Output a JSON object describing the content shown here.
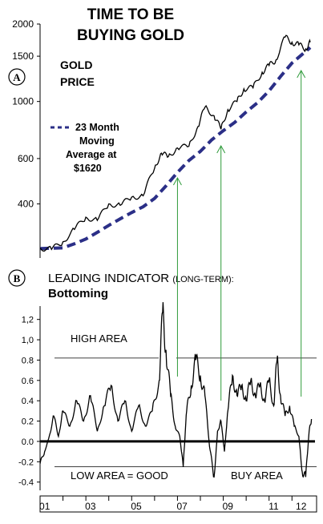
{
  "chart_data": [
    {
      "panel_label": "A",
      "type": "line",
      "title": "TIME TO BE",
      "subtitle": "BUYING GOLD",
      "label": "GOLD PRICE",
      "label_lines": [
        "GOLD",
        "PRICE"
      ],
      "y_scale": "log",
      "ylim": [
        250,
        2000
      ],
      "y_ticks": [
        400,
        600,
        1000,
        1500,
        2000
      ],
      "y_tick_labels": [
        "400",
        "600",
        "1000",
        "1500",
        "2000"
      ],
      "x_range": [
        2001.0,
        2012.9
      ],
      "legend": {
        "lines": [
          "23 Month",
          "Moving",
          "Average at",
          "$1620"
        ],
        "marker": "- - -",
        "position": "left-middle"
      },
      "series": [
        {
          "style": "solid",
          "x": [
            2001.0,
            2001.5,
            2002.0,
            2002.5,
            2003.0,
            2003.5,
            2004.0,
            2004.5,
            2005.0,
            2005.5,
            2006.0,
            2006.3,
            2006.6,
            2007.0,
            2007.5,
            2007.9,
            2008.2,
            2008.6,
            2008.9,
            2009.2,
            2009.6,
            2009.9,
            2010.3,
            2010.7,
            2011.0,
            2011.3,
            2011.7,
            2012.0,
            2012.3,
            2012.6,
            2012.8
          ],
          "values": [
            270,
            266,
            285,
            318,
            355,
            345,
            400,
            395,
            425,
            430,
            550,
            630,
            610,
            660,
            670,
            800,
            950,
            880,
            780,
            930,
            1000,
            1120,
            1130,
            1300,
            1380,
            1450,
            1780,
            1700,
            1660,
            1600,
            1700
          ]
        },
        {
          "style": "dashed",
          "x": [
            2001.0,
            2002.0,
            2002.5,
            2003.0,
            2003.5,
            2004.0,
            2004.5,
            2005.0,
            2005.5,
            2006.0,
            2006.5,
            2007.0,
            2007.5,
            2008.0,
            2008.5,
            2009.0,
            2009.5,
            2010.0,
            2010.5,
            2011.0,
            2011.5,
            2012.0,
            2012.5,
            2012.8
          ],
          "values": [
            268,
            270,
            280,
            292,
            310,
            330,
            350,
            370,
            390,
            420,
            470,
            530,
            590,
            640,
            710,
            770,
            830,
            910,
            990,
            1100,
            1250,
            1410,
            1540,
            1620
          ]
        }
      ]
    },
    {
      "panel_label": "B",
      "type": "line",
      "title": "LEADING INDICATOR",
      "title_suffix": "(LONG-TERM):",
      "subtitle": "Bottoming",
      "ylim": [
        -0.45,
        1.3
      ],
      "y_ticks": [
        -0.4,
        -0.2,
        0.0,
        0.2,
        0.4,
        0.6,
        0.8,
        1.0,
        1.2
      ],
      "y_tick_labels": [
        "-0.4",
        "-0.2",
        "0.0",
        "0.2",
        "0.4",
        "0.6",
        "0.8",
        "1,0",
        "1,2"
      ],
      "x_range": [
        2001.0,
        2012.9
      ],
      "x_tick_labels": [
        "01",
        "03",
        "05",
        "07",
        "09",
        "11",
        "12"
      ],
      "x_tick_positions": [
        2001.2,
        2003.2,
        2005.2,
        2007.2,
        2009.2,
        2011.2,
        2012.4
      ],
      "zones": {
        "high": "HIGH  AREA",
        "low_left": "LOW   AREA =  GOOD",
        "low_right": "BUY AREA",
        "high_level": 0.82,
        "low_level": -0.25
      },
      "series": [
        {
          "style": "solid",
          "x": [
            2001.0,
            2001.2,
            2001.4,
            2001.6,
            2001.8,
            2002.0,
            2002.3,
            2002.6,
            2002.9,
            2003.2,
            2003.5,
            2003.8,
            2004.1,
            2004.4,
            2004.7,
            2005.0,
            2005.3,
            2005.6,
            2005.9,
            2006.2,
            2006.35,
            2006.5,
            2006.7,
            2006.9,
            2007.1,
            2007.25,
            2007.4,
            2007.6,
            2007.8,
            2008.0,
            2008.2,
            2008.4,
            2008.6,
            2008.75,
            2008.9,
            2009.05,
            2009.2,
            2009.4,
            2009.6,
            2009.8,
            2010.0,
            2010.2,
            2010.4,
            2010.6,
            2010.8,
            2011.0,
            2011.2,
            2011.35,
            2011.5,
            2011.7,
            2011.9,
            2012.1,
            2012.3,
            2012.45,
            2012.6,
            2012.75,
            2012.85
          ],
          "values": [
            -0.22,
            -0.1,
            0.05,
            0.25,
            0.05,
            0.3,
            0.15,
            0.4,
            0.2,
            0.45,
            0.1,
            0.35,
            0.55,
            0.2,
            0.4,
            0.1,
            0.35,
            0.15,
            0.3,
            0.6,
            1.27,
            0.9,
            0.45,
            0.15,
            0.05,
            -0.25,
            0.3,
            0.55,
            0.8,
            0.65,
            0.45,
            -0.05,
            -0.35,
            0.1,
            0.2,
            -0.1,
            0.3,
            0.65,
            0.45,
            0.55,
            0.4,
            0.6,
            0.45,
            0.55,
            0.4,
            0.6,
            0.35,
            0.8,
            0.45,
            0.25,
            0.35,
            0.15,
            0.05,
            -0.3,
            -0.35,
            0.1,
            0.22
          ]
        }
      ],
      "arrows_x": [
        2007.0,
        2008.9,
        2012.4
      ]
    }
  ]
}
